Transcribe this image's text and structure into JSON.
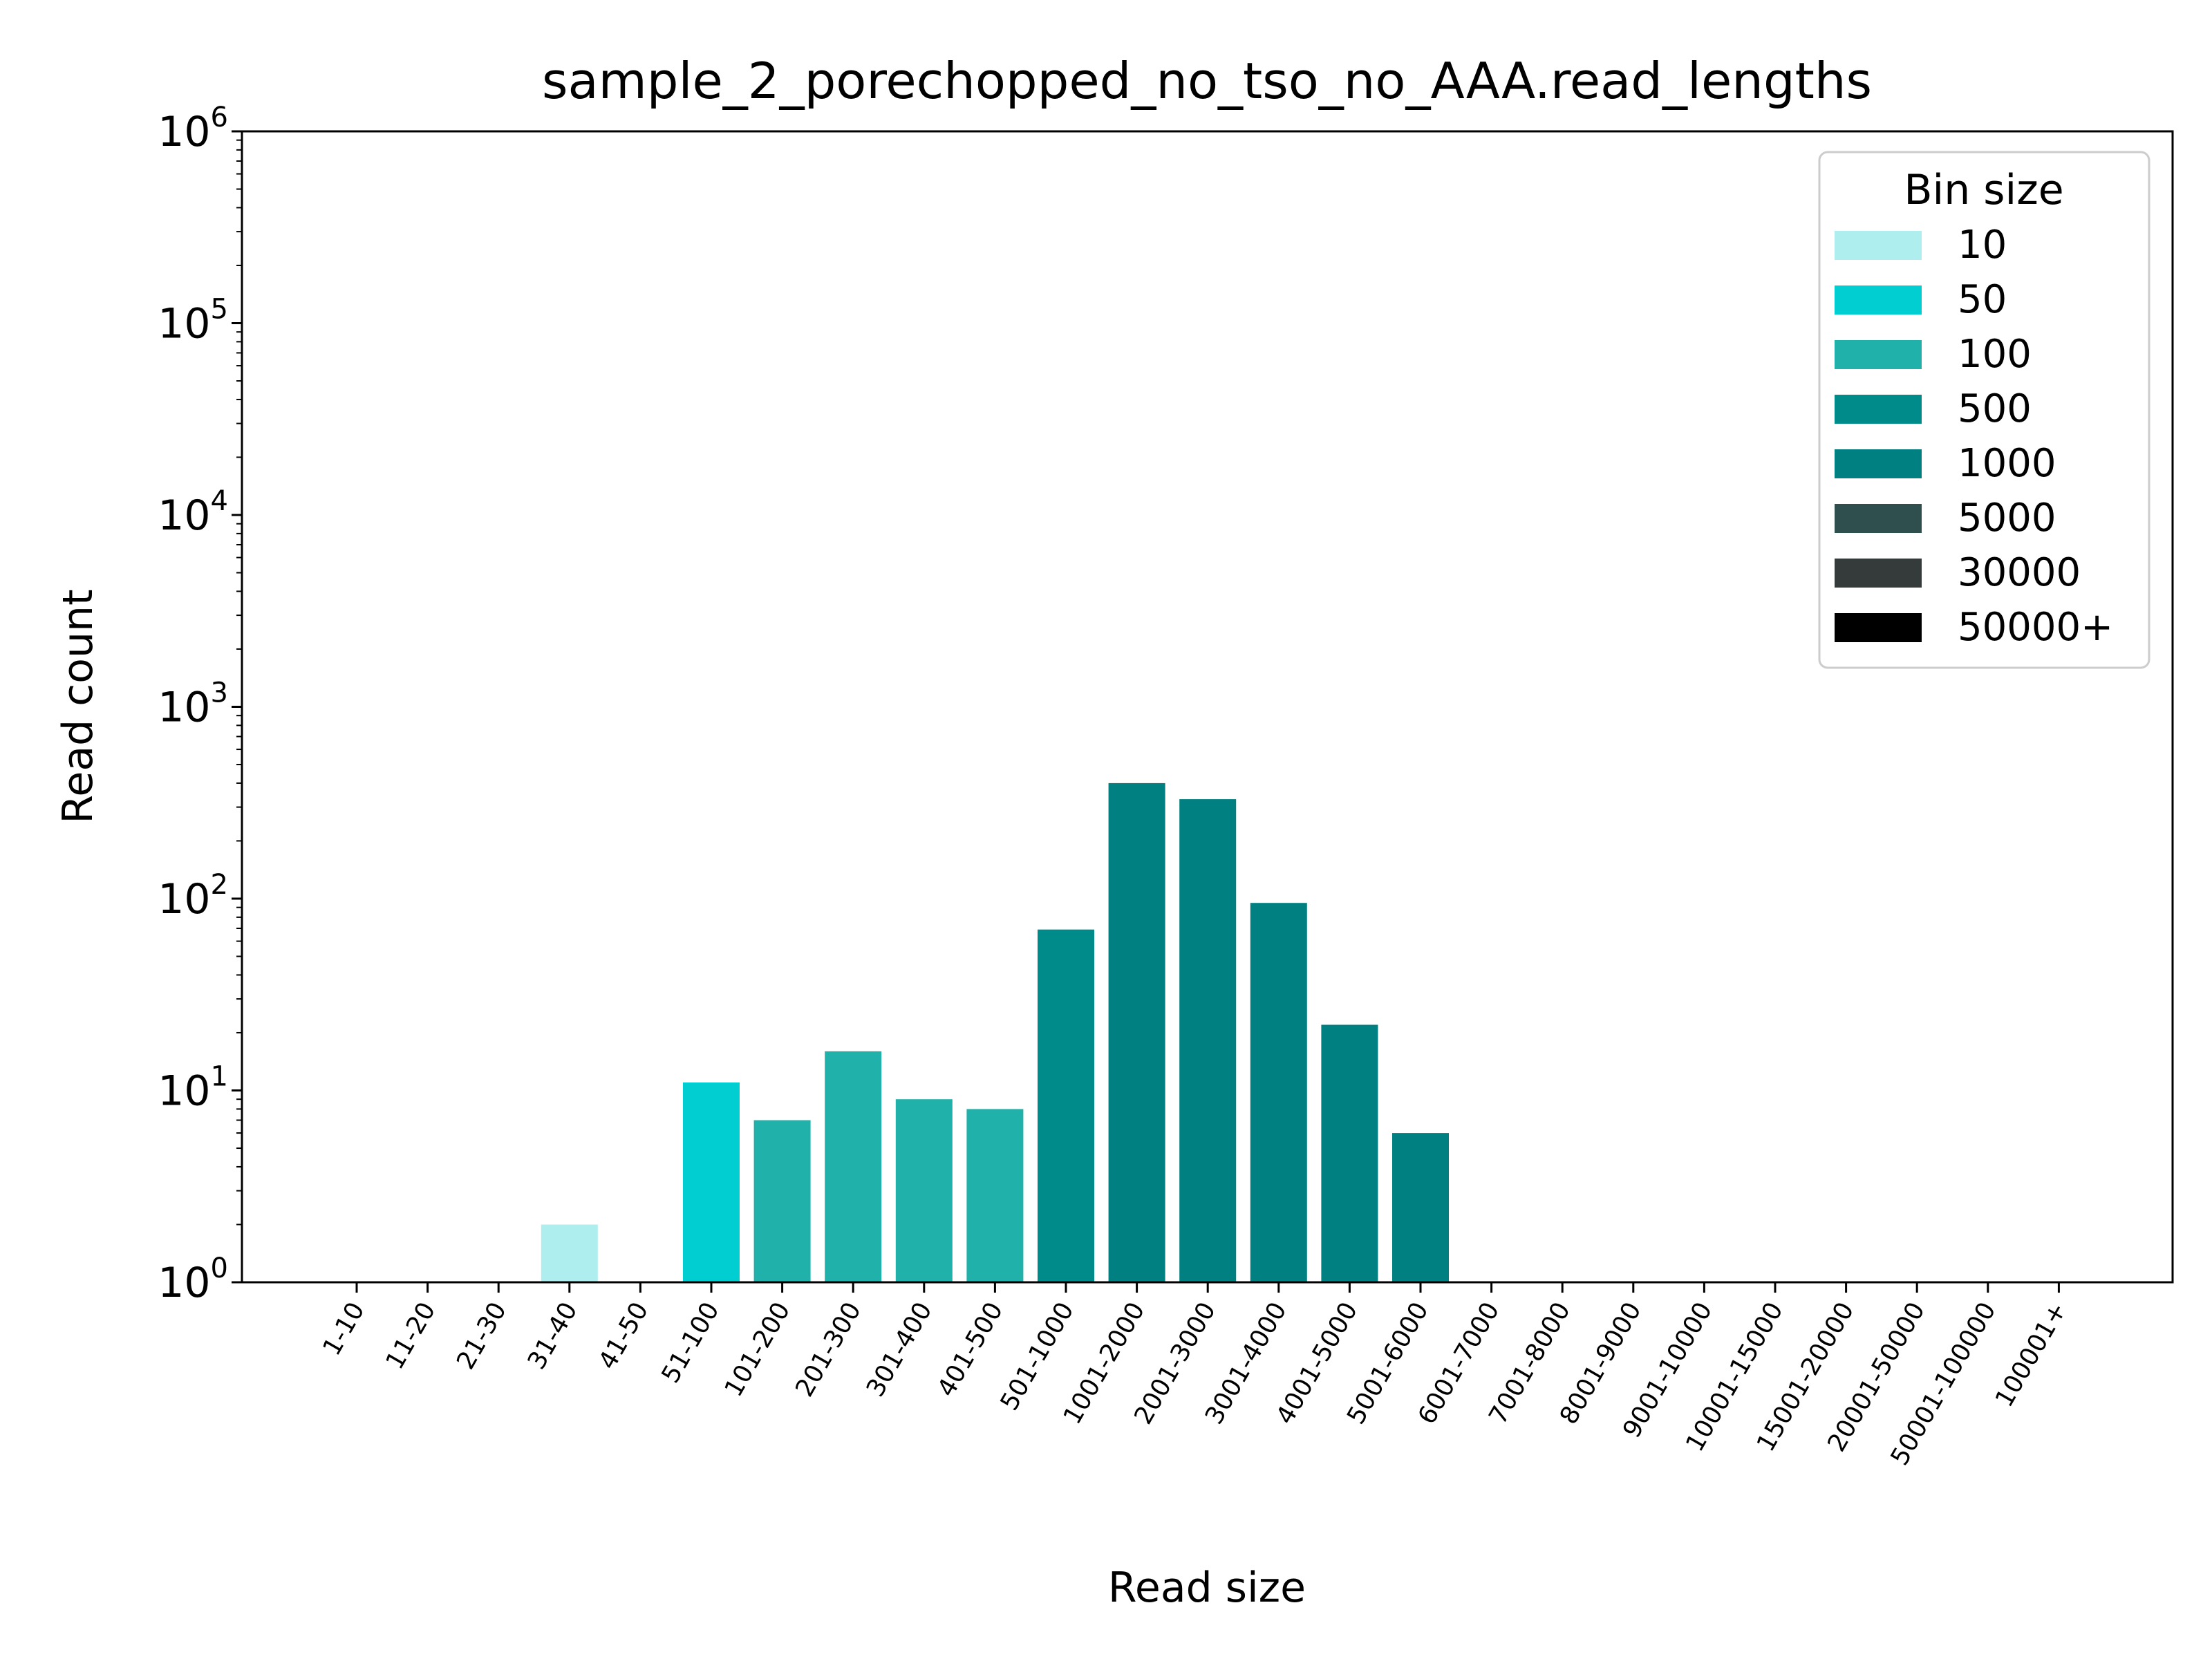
{
  "chart_data": {
    "type": "bar",
    "title": "sample_2_porechopped_no_tso_no_AAA.read_lengths",
    "xlabel": "Read size",
    "ylabel": "Read count",
    "yscale": "log",
    "ylim": [
      1,
      1000000
    ],
    "yticks": [
      {
        "base": "10",
        "exp": "0"
      },
      {
        "base": "10",
        "exp": "1"
      },
      {
        "base": "10",
        "exp": "2"
      },
      {
        "base": "10",
        "exp": "3"
      },
      {
        "base": "10",
        "exp": "4"
      },
      {
        "base": "10",
        "exp": "5"
      },
      {
        "base": "10",
        "exp": "6"
      }
    ],
    "categories": [
      "1-10",
      "11-20",
      "21-30",
      "31-40",
      "41-50",
      "51-100",
      "101-200",
      "201-300",
      "301-400",
      "401-500",
      "501-1000",
      "1001-2000",
      "2001-3000",
      "3001-4000",
      "4001-5000",
      "5001-6000",
      "6001-7000",
      "7001-8000",
      "8001-9000",
      "9001-10000",
      "10001-15000",
      "15001-20000",
      "20001-50000",
      "50001-100000",
      "100001+"
    ],
    "values": [
      0,
      0,
      0,
      2,
      0,
      11,
      7,
      16,
      9,
      8,
      69,
      400,
      330,
      95,
      22,
      6,
      0,
      0,
      0,
      0,
      0,
      0,
      0,
      0,
      0
    ],
    "bin_groups": [
      10,
      10,
      10,
      10,
      10,
      50,
      100,
      100,
      100,
      100,
      500,
      1000,
      1000,
      1000,
      1000,
      1000,
      1000,
      1000,
      1000,
      1000,
      5000,
      5000,
      30000,
      50000,
      50000
    ],
    "legend": {
      "title": "Bin size",
      "position": "top-right",
      "entries": [
        {
          "label": "10",
          "key": 10,
          "color": "#afeeee"
        },
        {
          "label": "50",
          "key": 50,
          "color": "#00ced1"
        },
        {
          "label": "100",
          "key": 100,
          "color": "#20b2aa"
        },
        {
          "label": "500",
          "key": 500,
          "color": "#008b8b"
        },
        {
          "label": "1000",
          "key": 1000,
          "color": "#008080"
        },
        {
          "label": "5000",
          "key": 5000,
          "color": "#2f4f4f"
        },
        {
          "label": "30000",
          "key": 30000,
          "color": "#353a3a"
        },
        {
          "label": "50000+",
          "key": 50000,
          "color": "#000000"
        }
      ]
    },
    "grid": false
  }
}
